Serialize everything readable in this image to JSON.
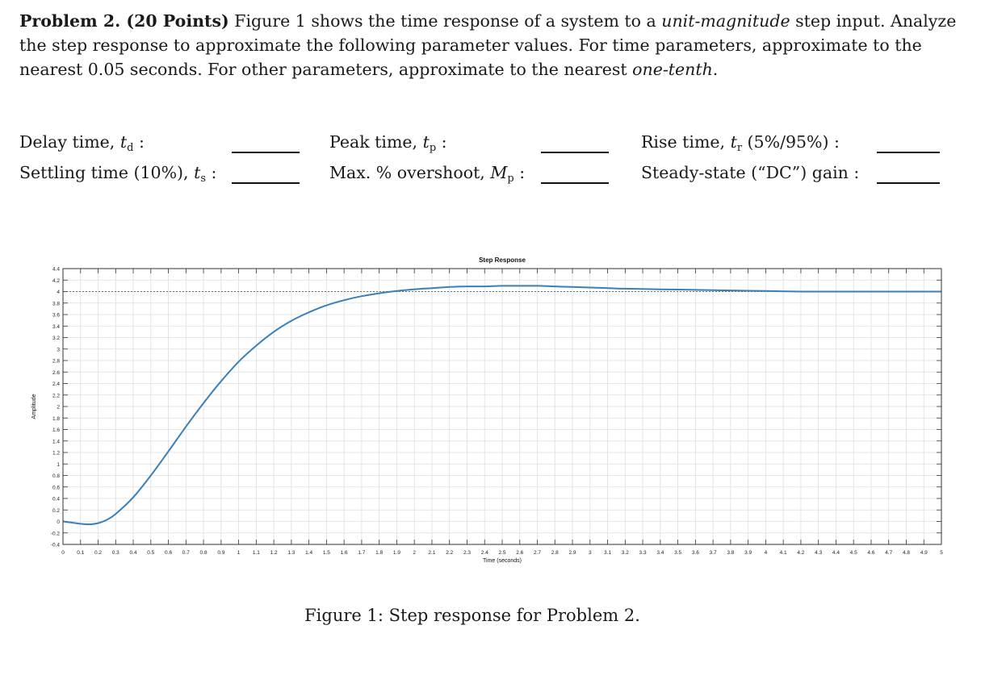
{
  "problem": {
    "heading": "Problem 2. (20 Points)",
    "text_1": " Figure 1 shows the time response of a system to a ",
    "text_italic_1": "unit-magnitude",
    "text_2": " step input. Analyze the step response to approximate the following parameter values. For time parameters, approximate to the nearest 0.05 seconds. For other parameters, approximate to the nearest ",
    "text_italic_2": "one-tenth",
    "text_3": "."
  },
  "parameters": {
    "delay": {
      "label": "Delay time, ",
      "symbol": "t",
      "sub": "d",
      "suffix": " :"
    },
    "peak": {
      "label": "Peak time, ",
      "symbol": "t",
      "sub": "p",
      "suffix": " :"
    },
    "rise": {
      "label": "Rise time, ",
      "symbol": "t",
      "sub": "r",
      "suffix": " (5%/95%) :"
    },
    "settling": {
      "label": "Settling time (10%), ",
      "symbol": "t",
      "sub": "s",
      "suffix": " :"
    },
    "overshoot": {
      "label": "Max. % overshoot, ",
      "symbol": "M",
      "sub": "p",
      "suffix": " :"
    },
    "gain": {
      "label": "Steady-state (“DC”) gain :",
      "symbol": "",
      "sub": "",
      "suffix": ""
    }
  },
  "chart_data": {
    "type": "line",
    "title": "Step Response",
    "xlabel": "Time (seconds)",
    "ylabel": "Amplitude",
    "xlim": [
      0,
      5
    ],
    "ylim": [
      -0.4,
      4.4
    ],
    "xticks": [
      0,
      0.1,
      0.2,
      0.3,
      0.4,
      0.5,
      0.6,
      0.7,
      0.8,
      0.9,
      1,
      1.1,
      1.2,
      1.3,
      1.4,
      1.5,
      1.6,
      1.7,
      1.8,
      1.9,
      2,
      2.1,
      2.2,
      2.3,
      2.4,
      2.5,
      2.6,
      2.7,
      2.8,
      2.9,
      3,
      3.1,
      3.2,
      3.3,
      3.4,
      3.5,
      3.6,
      3.7,
      3.8,
      3.9,
      4,
      4.1,
      4.2,
      4.3,
      4.4,
      4.5,
      4.6,
      4.7,
      4.8,
      4.9,
      5
    ],
    "yticks": [
      -0.4,
      -0.2,
      0,
      0.2,
      0.4,
      0.6,
      0.8,
      1,
      1.2,
      1.4,
      1.6,
      1.8,
      2,
      2.2,
      2.4,
      2.6,
      2.8,
      3,
      3.2,
      3.4,
      3.6,
      3.8,
      4,
      4.2,
      4.4
    ],
    "grid": true,
    "steady_state_line": 4,
    "series": [
      {
        "color": "#3a7fb7",
        "x": [
          0,
          0.05,
          0.1,
          0.15,
          0.2,
          0.25,
          0.3,
          0.4,
          0.5,
          0.6,
          0.7,
          0.8,
          0.9,
          1.0,
          1.1,
          1.2,
          1.3,
          1.4,
          1.5,
          1.6,
          1.7,
          1.8,
          1.9,
          2.0,
          2.1,
          2.2,
          2.3,
          2.4,
          2.5,
          2.6,
          2.7,
          2.8,
          2.9,
          3.0,
          3.2,
          3.4,
          3.6,
          3.8,
          4.0,
          4.2,
          4.4,
          4.6,
          4.8,
          5.0
        ],
        "y": [
          0,
          -0.02,
          -0.04,
          -0.05,
          -0.03,
          0.03,
          0.13,
          0.42,
          0.8,
          1.22,
          1.65,
          2.06,
          2.44,
          2.78,
          3.06,
          3.3,
          3.49,
          3.64,
          3.76,
          3.85,
          3.92,
          3.97,
          4.01,
          4.04,
          4.06,
          4.08,
          4.09,
          4.09,
          4.1,
          4.1,
          4.1,
          4.09,
          4.08,
          4.07,
          4.05,
          4.04,
          4.03,
          4.02,
          4.01,
          4.0,
          4.0,
          4.0,
          4.0,
          4.0
        ]
      }
    ]
  },
  "caption": "Figure 1: Step response for Problem 2."
}
